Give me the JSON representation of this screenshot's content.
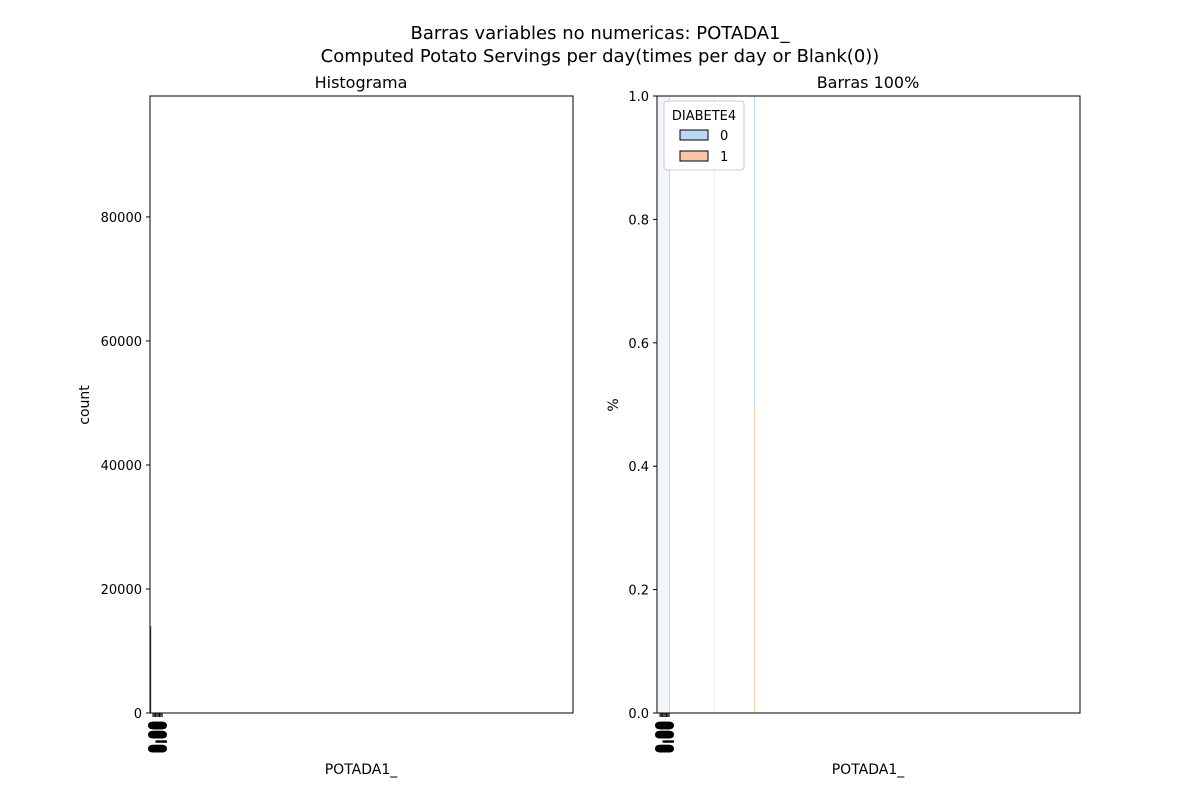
{
  "figure": {
    "suptitle_line1": "Barras variables no numericas: POTADA1_",
    "suptitle_line2": "Computed Potato Servings per day(times per day or Blank(0))"
  },
  "chart_data": [
    {
      "type": "bar",
      "title": "Histograma",
      "xlabel": "POTADA1_",
      "ylabel": "count",
      "ylim": [
        0,
        99500
      ],
      "yticks": [
        0,
        20000,
        40000,
        60000,
        80000
      ],
      "ytick_labels": [
        "0",
        "20000",
        "40000",
        "60000",
        "80000"
      ],
      "x_tick_text": "0.00",
      "x_tick_count": 8,
      "grid": false,
      "values_note_max": 14000
    },
    {
      "type": "bar",
      "title": "Barras 100%",
      "xlabel": "POTADA1_",
      "ylabel": "%",
      "ylim": [
        0,
        1
      ],
      "yticks": [
        0.0,
        0.2,
        0.4,
        0.6,
        0.8,
        1.0
      ],
      "ytick_labels": [
        "0.0",
        "0.2",
        "0.4",
        "0.6",
        "0.8",
        "1.0"
      ],
      "x_tick_text": "0.00",
      "x_tick_count": 8,
      "grid": false,
      "stacked": true,
      "legend": {
        "title": "DIABETE4",
        "placement": "upper-left",
        "entries": [
          {
            "label": "0",
            "color": "#bcd6f5"
          },
          {
            "label": "1",
            "color": "#f9c6a5"
          }
        ]
      }
    }
  ]
}
